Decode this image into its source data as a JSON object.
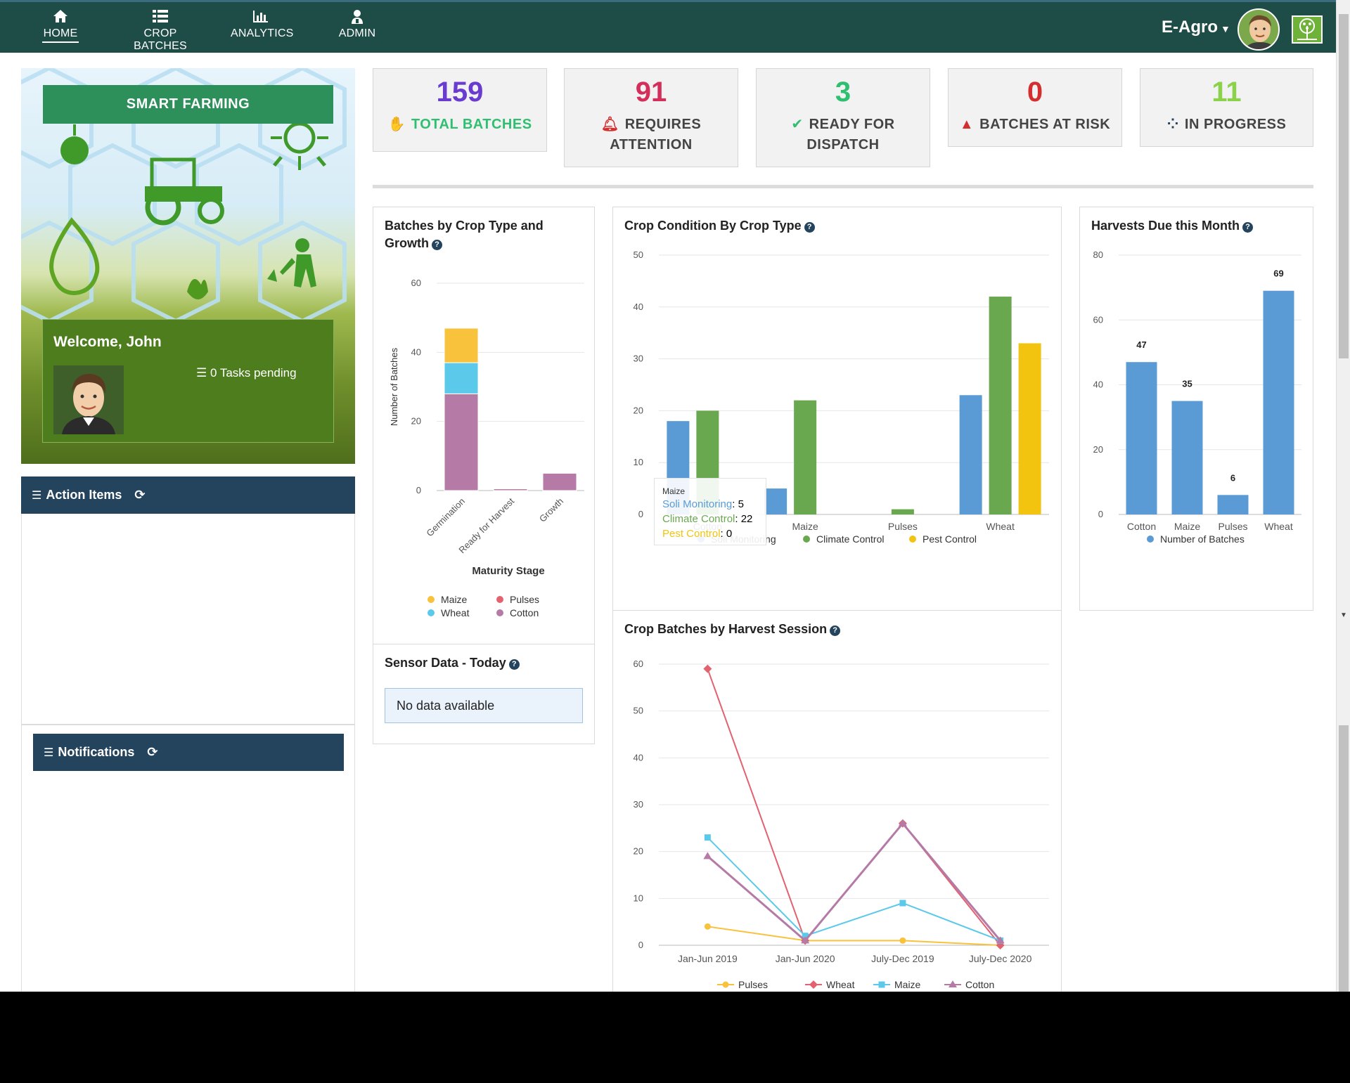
{
  "nav": {
    "items": [
      {
        "label": "HOME",
        "icon": "home-icon"
      },
      {
        "label": "CROP BATCHES",
        "icon": "list-icon"
      },
      {
        "label": "ANALYTICS",
        "icon": "bar-chart-icon"
      },
      {
        "label": "ADMIN",
        "icon": "admin-icon"
      }
    ],
    "brand": "E-Agro",
    "active": "HOME"
  },
  "hero": {
    "title": "SMART FARMING",
    "welcome": "Welcome, John",
    "tasks": "0 Tasks pending"
  },
  "panels": {
    "action_items": "Action Items",
    "notifications": "Notifications"
  },
  "kpis": [
    {
      "value": "159",
      "label": "TOTAL BATCHES",
      "color": "#6a3bcf",
      "label_color": "#2fbf71"
    },
    {
      "value": "91",
      "label": "REQUIRES ATTENTION",
      "color": "#d32f5a"
    },
    {
      "value": "3",
      "label": "READY FOR DISPATCH",
      "color": "#2fbf71"
    },
    {
      "value": "0",
      "label": "BATCHES AT RISK",
      "color": "#d32f2f"
    },
    {
      "value": "11",
      "label": "IN PROGRESS",
      "color": "#8bd14a"
    }
  ],
  "sensor": {
    "title": "Sensor Data - Today",
    "message": "No data available"
  },
  "tooltip": {
    "title": "Maize",
    "rows": [
      {
        "label": "Soli Monitoring",
        "value": "5",
        "color": "#5b9bd5"
      },
      {
        "label": "Climate Control",
        "value": "22",
        "color": "#6aa84f"
      },
      {
        "label": "Pest Control",
        "value": "0",
        "color": "#f2c40f"
      }
    ]
  },
  "chart_data": [
    {
      "id": "growth",
      "type": "bar",
      "stacked": true,
      "title": "Batches by Crop Type and Growth",
      "xlabel": "Maturity Stage",
      "ylabel": "Number of Batches",
      "ylim": [
        0,
        60
      ],
      "yticks": [
        0,
        20,
        40,
        60
      ],
      "categories": [
        "Germination",
        "Ready for Harvest",
        "Growth"
      ],
      "series": [
        {
          "name": "Cotton",
          "values": [
            28,
            0.5,
            5
          ],
          "color": "#b57aa6"
        },
        {
          "name": "Wheat",
          "values": [
            9,
            0,
            0
          ],
          "color": "#5bc9ea"
        },
        {
          "name": "Maize",
          "values": [
            10,
            0,
            0
          ],
          "color": "#f9c23c"
        },
        {
          "name": "Pulses",
          "values": [
            0,
            0,
            0
          ],
          "color": "#e3626f"
        }
      ],
      "legend": [
        "Maize",
        "Pulses",
        "Wheat",
        "Cotton"
      ]
    },
    {
      "id": "condition",
      "type": "bar",
      "title": "Crop Condition By Crop Type",
      "ylim": [
        0,
        50
      ],
      "yticks": [
        0,
        10,
        20,
        30,
        40,
        50
      ],
      "categories": [
        "Cotton",
        "Maize",
        "Pulses",
        "Wheat"
      ],
      "series": [
        {
          "name": "Soli Monitoring",
          "values": [
            18,
            5,
            0,
            23
          ],
          "color": "#5b9bd5"
        },
        {
          "name": "Climate Control",
          "values": [
            20,
            22,
            1,
            42
          ],
          "color": "#6aa84f"
        },
        {
          "name": "Pest Control",
          "values": [
            0,
            0,
            0,
            33
          ],
          "color": "#f2c40f"
        }
      ]
    },
    {
      "id": "harvests",
      "type": "bar",
      "title": "Harvests Due this Month",
      "ylim": [
        0,
        80
      ],
      "yticks": [
        0,
        20,
        40,
        60,
        80
      ],
      "categories": [
        "Cotton",
        "Maize",
        "Pulses",
        "Wheat"
      ],
      "series": [
        {
          "name": "Number of Batches",
          "values": [
            47,
            35,
            6,
            69
          ],
          "color": "#5b9bd5"
        }
      ]
    },
    {
      "id": "sessions",
      "type": "line",
      "title": "Crop Batches by Harvest Session",
      "ylim": [
        0,
        60
      ],
      "yticks": [
        0,
        10,
        20,
        30,
        40,
        50,
        60
      ],
      "categories": [
        "Jan-Jun 2019",
        "Jan-Jun 2020",
        "July-Dec 2019",
        "July-Dec 2020"
      ],
      "series": [
        {
          "name": "Pulses",
          "values": [
            4,
            1,
            1,
            0
          ],
          "color": "#f9c23c",
          "marker": "circle"
        },
        {
          "name": "Wheat",
          "values": [
            59,
            1,
            26,
            0
          ],
          "color": "#e3626f",
          "marker": "diamond"
        },
        {
          "name": "Maize",
          "values": [
            23,
            2,
            9,
            1
          ],
          "color": "#5bc9ea",
          "marker": "square"
        },
        {
          "name": "Cotton",
          "values": [
            19,
            1,
            26,
            1
          ],
          "color": "#b57aa6",
          "marker": "triangle"
        }
      ]
    }
  ]
}
